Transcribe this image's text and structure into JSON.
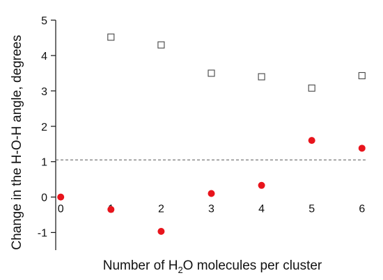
{
  "chart_data": {
    "type": "scatter",
    "xlabel_parts": [
      "Number of H",
      "2",
      "O molecules per cluster"
    ],
    "ylabel": "Change in the H-O-H angle, degrees",
    "xlim": [
      -0.1,
      6.1
    ],
    "ylim": [
      -1.5,
      5
    ],
    "x_ticks": [
      0,
      1,
      2,
      3,
      4,
      5,
      6
    ],
    "y_ticks": [
      -1,
      0,
      1,
      2,
      3,
      4,
      5
    ],
    "grid": false,
    "reference_line": {
      "y": 1.05,
      "style": "dashed",
      "color": "#555555"
    },
    "series": [
      {
        "marker": "open-square",
        "color": "#444444",
        "points": [
          [
            1,
            4.52
          ],
          [
            2,
            4.3
          ],
          [
            3,
            3.5
          ],
          [
            4,
            3.4
          ],
          [
            5,
            3.08
          ],
          [
            6,
            3.43
          ]
        ]
      },
      {
        "marker": "filled-circle",
        "color": "#e8141c",
        "points": [
          [
            0,
            0.0
          ],
          [
            1,
            -0.35
          ],
          [
            2,
            -0.97
          ],
          [
            3,
            0.1
          ],
          [
            4,
            0.33
          ],
          [
            5,
            1.6
          ],
          [
            6,
            1.38
          ]
        ]
      }
    ]
  }
}
